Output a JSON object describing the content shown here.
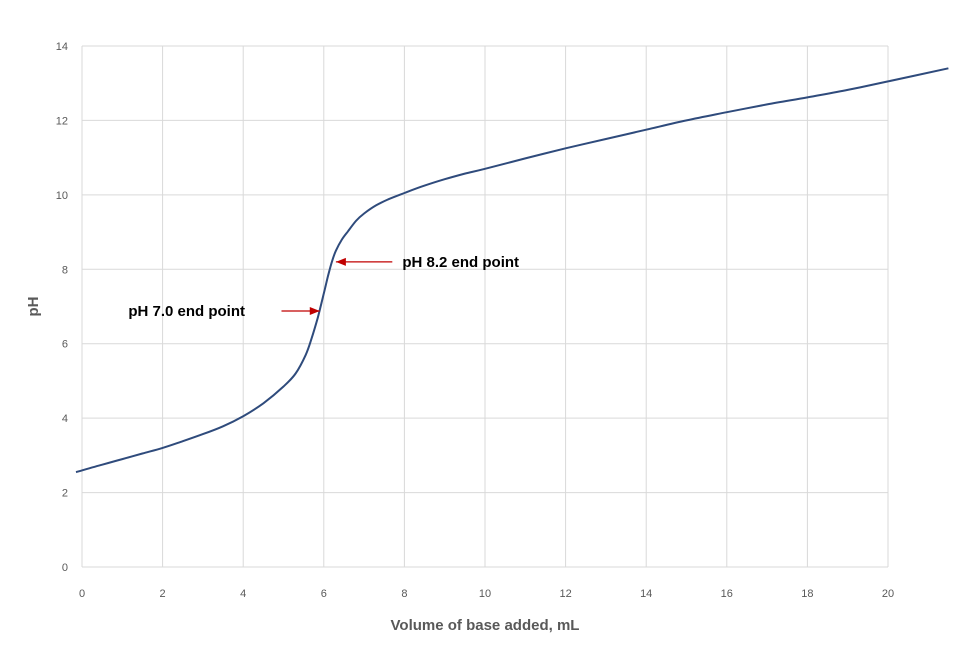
{
  "chart_data": {
    "type": "line",
    "title": "",
    "xlabel": "Volume of base added, mL",
    "ylabel": "pH",
    "xlim": [
      0,
      20
    ],
    "ylim": [
      0,
      14
    ],
    "x_ticks": [
      0,
      2,
      4,
      6,
      8,
      10,
      12,
      14,
      16,
      18,
      20
    ],
    "y_ticks": [
      0,
      2,
      4,
      6,
      8,
      10,
      12,
      14
    ],
    "grid": true,
    "line_color": "#2f4b7c",
    "arrow_color": "#c00000",
    "series": [
      {
        "x": [
          -0.15,
          0.5,
          1,
          1.5,
          2,
          2.5,
          3,
          3.5,
          4,
          4.5,
          5,
          5.3,
          5.55,
          5.7,
          5.85,
          6.0,
          6.1,
          6.2,
          6.3,
          6.45,
          6.6,
          6.8,
          7.0,
          7.3,
          7.6,
          8.0,
          8.5,
          9.0,
          9.5,
          10,
          11,
          12,
          13,
          14,
          15,
          16,
          17,
          18,
          19,
          20,
          21.5
        ],
        "y": [
          2.55,
          2.75,
          2.9,
          3.05,
          3.2,
          3.38,
          3.57,
          3.78,
          4.05,
          4.4,
          4.85,
          5.2,
          5.7,
          6.15,
          6.7,
          7.35,
          7.8,
          8.2,
          8.5,
          8.8,
          9.02,
          9.3,
          9.5,
          9.72,
          9.88,
          10.05,
          10.25,
          10.42,
          10.57,
          10.7,
          10.98,
          11.25,
          11.5,
          11.75,
          12.0,
          12.22,
          12.43,
          12.62,
          12.82,
          13.05,
          13.4
        ]
      }
    ],
    "annotations": [
      {
        "text": "pH 7.0 end point",
        "arrow_from": [
          4.95,
          6.88
        ],
        "arrow_to": [
          5.9,
          6.88
        ],
        "text_at": [
          1.15,
          6.88
        ],
        "anchor": "start"
      },
      {
        "text": "pH 8.2 end point",
        "arrow_from": [
          7.7,
          8.2
        ],
        "arrow_to": [
          6.3,
          8.2
        ],
        "text_at": [
          7.95,
          8.2
        ],
        "anchor": "start"
      }
    ]
  }
}
